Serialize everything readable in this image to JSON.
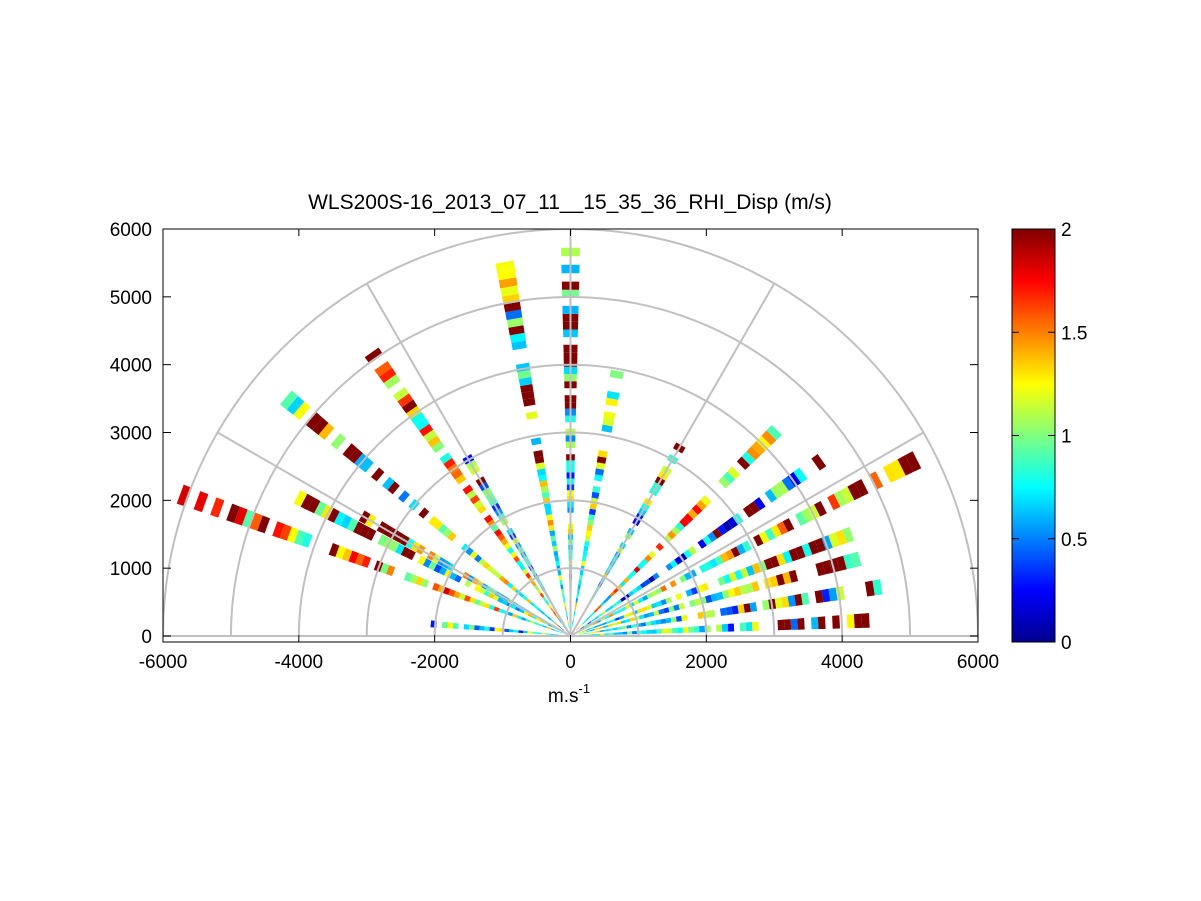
{
  "chart_data": {
    "type": "heatmap",
    "subtype": "polar RHI scan",
    "title": "WLS200S-16_2013_07_11__15_35_36_RHI_Disp (m/s)",
    "xlabel": "m.s",
    "xlabel_sup": "-1",
    "ylabel": "",
    "xlim": [
      -6000,
      6000
    ],
    "ylim": [
      0,
      6000
    ],
    "x_ticks": [
      "-6000",
      "-4000",
      "-2000",
      "0",
      "2000",
      "4000",
      "6000"
    ],
    "y_ticks": [
      "0",
      "1000",
      "2000",
      "3000",
      "4000",
      "5000",
      "6000"
    ],
    "range_rings_m": [
      1000,
      2000,
      3000,
      4000,
      5000,
      6000
    ],
    "spoke_angles_deg": [
      0,
      30,
      60,
      90,
      120,
      150,
      180
    ],
    "grid": true,
    "colorbar": {
      "colormap": "jet",
      "range": [
        0,
        2
      ],
      "ticks": [
        "0",
        "0.5",
        "1",
        "1.5",
        "2"
      ],
      "placement": "right"
    },
    "beams": [
      {
        "elevation_deg": 3,
        "max_range_m": 4300,
        "mean_disp": 0.75
      },
      {
        "elevation_deg": 9,
        "max_range_m": 4600,
        "mean_disp": 0.85
      },
      {
        "elevation_deg": 15,
        "max_range_m": 4400,
        "mean_disp": 0.9
      },
      {
        "elevation_deg": 20,
        "max_range_m": 4500,
        "mean_disp": 0.9
      },
      {
        "elevation_deg": 27,
        "max_range_m": 5600,
        "mean_disp": 1.1
      },
      {
        "elevation_deg": 35,
        "max_range_m": 4500,
        "mean_disp": 0.6
      },
      {
        "elevation_deg": 45,
        "max_range_m": 4400,
        "mean_disp": 1.3
      },
      {
        "elevation_deg": 60,
        "max_range_m": 3200,
        "mean_disp": 0.8
      },
      {
        "elevation_deg": 80,
        "max_range_m": 3900,
        "mean_disp": 0.9
      },
      {
        "elevation_deg": 90,
        "max_range_m": 5600,
        "mean_disp": 0.85
      },
      {
        "elevation_deg": 100,
        "max_range_m": 5500,
        "mean_disp": 1.0
      },
      {
        "elevation_deg": 120,
        "max_range_m": 3000,
        "mean_disp": 0.7
      },
      {
        "elevation_deg": 125,
        "max_range_m": 5000,
        "mean_disp": 1.2
      },
      {
        "elevation_deg": 140,
        "max_range_m": 5500,
        "mean_disp": 1.0
      },
      {
        "elevation_deg": 150,
        "max_range_m": 3500,
        "mean_disp": 1.0
      },
      {
        "elevation_deg": 153,
        "max_range_m": 4500,
        "mean_disp": 0.9
      },
      {
        "elevation_deg": 160,
        "max_range_m": 6000,
        "mean_disp": 1.3
      },
      {
        "elevation_deg": 175,
        "max_range_m": 2000,
        "mean_disp": 0.8
      }
    ]
  }
}
